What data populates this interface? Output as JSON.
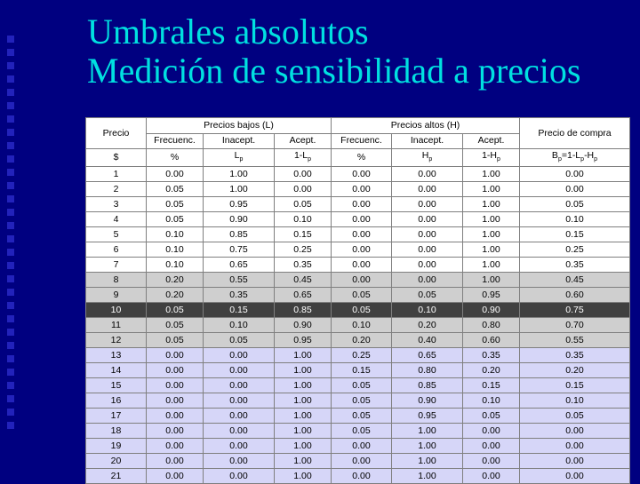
{
  "title": {
    "line1": "Umbrales absolutos",
    "line2": "Medición de sensibilidad a precios"
  },
  "table": {
    "group_low": "Precios bajos (L)",
    "group_high": "Precios altos (H)",
    "col_price": "Precio",
    "col_buy": "Precio de compra",
    "sub_headers": [
      "Frecuenc.",
      "Inacept.",
      "Acept.",
      "Frecuenc.",
      "Inacept.",
      "Acept."
    ],
    "units": {
      "price": "$",
      "low_freq": "%",
      "low_inacept": "L",
      "low_inacept_sub": "p",
      "low_acept": "1-L",
      "low_acept_sub": "p",
      "high_freq": "%",
      "high_inacept": "H",
      "high_inacept_sub": "p",
      "high_acept": "1-H",
      "high_acept_sub": "p",
      "buy_b": "B",
      "buy_b_sub": "p",
      "buy_eq": "=1-L",
      "buy_eq_sub": "p",
      "buy_minus": "-H",
      "buy_minus_sub": "p"
    },
    "rows": [
      {
        "style": "w",
        "cells": [
          "1",
          "0.00",
          "1.00",
          "0.00",
          "0.00",
          "0.00",
          "1.00",
          "0.00"
        ]
      },
      {
        "style": "w",
        "cells": [
          "2",
          "0.05",
          "1.00",
          "0.00",
          "0.00",
          "0.00",
          "1.00",
          "0.00"
        ]
      },
      {
        "style": "w",
        "cells": [
          "3",
          "0.05",
          "0.95",
          "0.05",
          "0.00",
          "0.00",
          "1.00",
          "0.05"
        ]
      },
      {
        "style": "w",
        "cells": [
          "4",
          "0.05",
          "0.90",
          "0.10",
          "0.00",
          "0.00",
          "1.00",
          "0.10"
        ]
      },
      {
        "style": "w",
        "cells": [
          "5",
          "0.10",
          "0.85",
          "0.15",
          "0.00",
          "0.00",
          "1.00",
          "0.15"
        ]
      },
      {
        "style": "w",
        "cells": [
          "6",
          "0.10",
          "0.75",
          "0.25",
          "0.00",
          "0.00",
          "1.00",
          "0.25"
        ]
      },
      {
        "style": "w",
        "cells": [
          "7",
          "0.10",
          "0.65",
          "0.35",
          "0.00",
          "0.00",
          "1.00",
          "0.35"
        ]
      },
      {
        "style": "g",
        "cells": [
          "8",
          "0.20",
          "0.55",
          "0.45",
          "0.00",
          "0.00",
          "1.00",
          "0.45"
        ]
      },
      {
        "style": "g",
        "cells": [
          "9",
          "0.20",
          "0.35",
          "0.65",
          "0.05",
          "0.05",
          "0.95",
          "0.60"
        ]
      },
      {
        "style": "k",
        "cells": [
          "10",
          "0.05",
          "0.15",
          "0.85",
          "0.05",
          "0.10",
          "0.90",
          "0.75"
        ]
      },
      {
        "style": "g",
        "cells": [
          "11",
          "0.05",
          "0.10",
          "0.90",
          "0.10",
          "0.20",
          "0.80",
          "0.70"
        ]
      },
      {
        "style": "g",
        "cells": [
          "12",
          "0.05",
          "0.05",
          "0.95",
          "0.20",
          "0.40",
          "0.60",
          "0.55"
        ]
      },
      {
        "style": "b",
        "cells": [
          "13",
          "0.00",
          "0.00",
          "1.00",
          "0.25",
          "0.65",
          "0.35",
          "0.35"
        ]
      },
      {
        "style": "b",
        "cells": [
          "14",
          "0.00",
          "0.00",
          "1.00",
          "0.15",
          "0.80",
          "0.20",
          "0.20"
        ]
      },
      {
        "style": "b",
        "cells": [
          "15",
          "0.00",
          "0.00",
          "1.00",
          "0.05",
          "0.85",
          "0.15",
          "0.15"
        ]
      },
      {
        "style": "b",
        "cells": [
          "16",
          "0.00",
          "0.00",
          "1.00",
          "0.05",
          "0.90",
          "0.10",
          "0.10"
        ]
      },
      {
        "style": "b",
        "cells": [
          "17",
          "0.00",
          "0.00",
          "1.00",
          "0.05",
          "0.95",
          "0.05",
          "0.05"
        ]
      },
      {
        "style": "b",
        "cells": [
          "18",
          "0.00",
          "0.00",
          "1.00",
          "0.05",
          "1.00",
          "0.00",
          "0.00"
        ]
      },
      {
        "style": "b",
        "cells": [
          "19",
          "0.00",
          "0.00",
          "1.00",
          "0.00",
          "1.00",
          "0.00",
          "0.00"
        ]
      },
      {
        "style": "b",
        "cells": [
          "20",
          "0.00",
          "0.00",
          "1.00",
          "0.00",
          "1.00",
          "0.00",
          "0.00"
        ]
      },
      {
        "style": "b",
        "cells": [
          "21",
          "0.00",
          "0.00",
          "1.00",
          "0.00",
          "1.00",
          "0.00",
          "0.00"
        ]
      }
    ]
  }
}
